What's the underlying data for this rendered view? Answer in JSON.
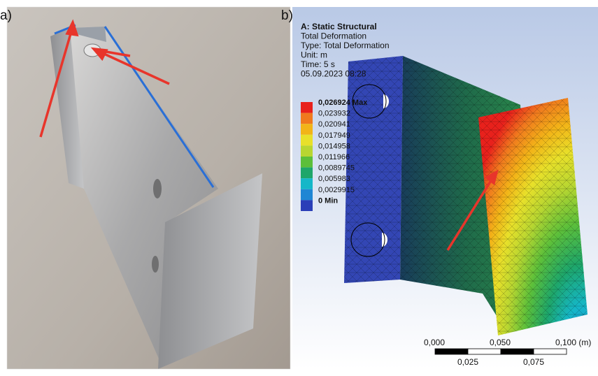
{
  "panels": [
    {
      "label": "a)"
    },
    {
      "label": "b)"
    }
  ],
  "simulation": {
    "header": [
      "A: Static Structural",
      "Total Deformation",
      "Type: Total Deformation",
      "Unit: m",
      "Time: 5 s",
      "05.09.2023 08:28"
    ],
    "legend": [
      {
        "label": "0,026924 Max",
        "color": "#e8211c"
      },
      {
        "label": "0,023932",
        "color": "#f0791e"
      },
      {
        "label": "0,020941",
        "color": "#f2b418"
      },
      {
        "label": "0,017949",
        "color": "#e8e02a"
      },
      {
        "label": "0,014958",
        "color": "#b8d631"
      },
      {
        "label": "0,011966",
        "color": "#5cbf3a"
      },
      {
        "label": "0,0089745",
        "color": "#1ea66a"
      },
      {
        "label": "0,005983",
        "color": "#15b7c8"
      },
      {
        "label": "0,0029915",
        "color": "#1f86d4"
      },
      {
        "label": "0 Min",
        "color": "#2b3fb8"
      }
    ],
    "scale_bar": {
      "top_labels": [
        "0,000",
        "0,050",
        "0,100 (m)"
      ],
      "bottom_labels": [
        "0,025",
        "0,075"
      ]
    }
  }
}
